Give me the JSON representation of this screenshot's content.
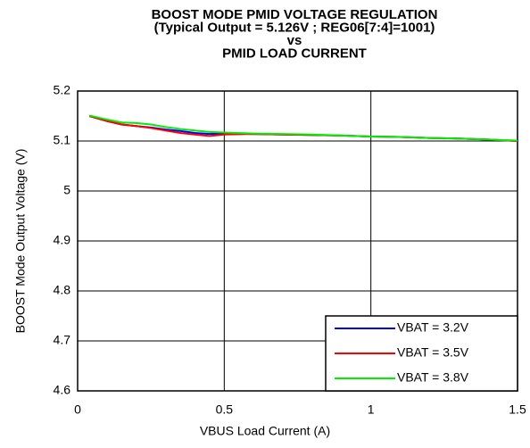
{
  "chart_data": {
    "type": "line",
    "title": [
      "BOOST MODE PMID VOLTAGE REGULATION",
      "(Typical Output = 5.126V ; REG06[7:4]=1001)",
      "vs",
      "PMID LOAD CURRENT"
    ],
    "x_label": "VBUS Load Current (A)",
    "y_label": "BOOST Mode Output Voltage (V)",
    "x": [
      0.04,
      0.1,
      0.15,
      0.2,
      0.25,
      0.3,
      0.35,
      0.4,
      0.45,
      0.5,
      0.6,
      0.7,
      0.8,
      0.9,
      1.0,
      1.1,
      1.2,
      1.3,
      1.4,
      1.5
    ],
    "series": [
      {
        "name": "VBAT = 3.2V",
        "color": "#0000ff",
        "values": [
          5.15,
          5.14,
          5.133,
          5.13,
          5.127,
          5.123,
          5.12,
          5.116,
          5.114,
          5.115,
          5.114,
          5.113,
          5.112,
          5.111,
          5.109,
          5.108,
          5.106,
          5.105,
          5.103,
          5.1
        ]
      },
      {
        "name": "VBAT = 3.5V",
        "color": "#ff0000",
        "values": [
          5.15,
          5.14,
          5.133,
          5.13,
          5.126,
          5.121,
          5.116,
          5.113,
          5.11,
          5.113,
          5.114,
          5.113,
          5.112,
          5.111,
          5.109,
          5.108,
          5.106,
          5.105,
          5.103,
          5.1
        ]
      },
      {
        "name": "VBAT = 3.8V",
        "color": "#00ee00",
        "values": [
          5.151,
          5.143,
          5.137,
          5.136,
          5.133,
          5.128,
          5.124,
          5.121,
          5.118,
          5.117,
          5.115,
          5.114,
          5.113,
          5.111,
          5.109,
          5.108,
          5.106,
          5.105,
          5.103,
          5.101
        ]
      }
    ],
    "xlim": [
      0,
      1.5
    ],
    "xticks": [
      0,
      0.5,
      1,
      1.5
    ],
    "ylim": [
      4.6,
      5.2
    ],
    "yticks": [
      4.6,
      4.7,
      4.8,
      4.9,
      5,
      5.1,
      5.2
    ],
    "grid": true,
    "legend": "lower right"
  }
}
